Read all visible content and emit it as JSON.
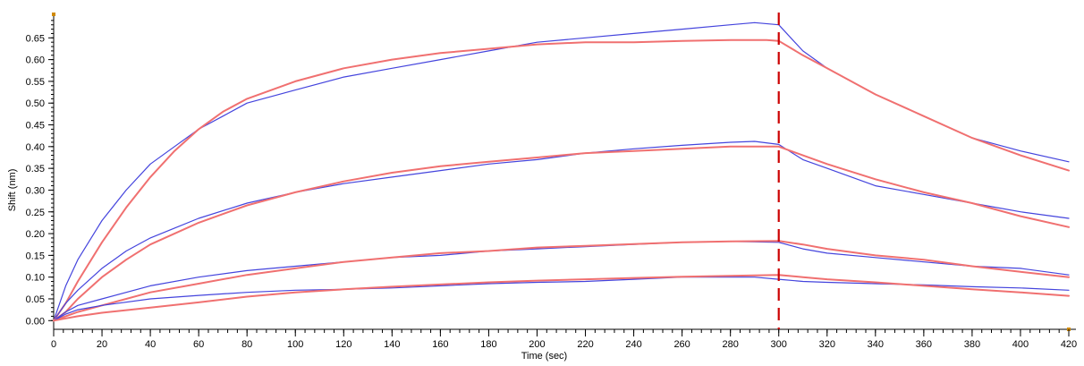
{
  "chart_data": {
    "type": "line",
    "xlabel": "Time (sec)",
    "ylabel": "Shift (nm)",
    "xlim": [
      0,
      420
    ],
    "ylim": [
      -0.02,
      0.7
    ],
    "x_ticks": [
      0,
      20,
      40,
      60,
      80,
      100,
      120,
      140,
      160,
      180,
      200,
      220,
      240,
      260,
      280,
      300,
      320,
      340,
      360,
      380,
      400,
      420
    ],
    "y_ticks": [
      0.0,
      0.05,
      0.1,
      0.15,
      0.2,
      0.25,
      0.3,
      0.35,
      0.4,
      0.45,
      0.5,
      0.55,
      0.6,
      0.65
    ],
    "y_tick_labels": [
      "0.00",
      "0.05",
      "0.10",
      "0.15",
      "0.20",
      "0.25",
      "0.30",
      "0.35",
      "0.40",
      "0.45",
      "0.50",
      "0.55",
      "0.60",
      "0.65"
    ],
    "grid": false,
    "vline": {
      "x": 300,
      "color": "#cc0000",
      "style": "dashed"
    },
    "colors": {
      "measured": "#4444dd",
      "fit": "#f07070"
    },
    "series": [
      {
        "kind": "measured",
        "color": "#4444dd",
        "points": [
          [
            0,
            0.0
          ],
          [
            5,
            0.08
          ],
          [
            10,
            0.14
          ],
          [
            20,
            0.23
          ],
          [
            30,
            0.3
          ],
          [
            40,
            0.36
          ],
          [
            50,
            0.4
          ],
          [
            60,
            0.44
          ],
          [
            70,
            0.47
          ],
          [
            80,
            0.5
          ],
          [
            100,
            0.53
          ],
          [
            120,
            0.56
          ],
          [
            140,
            0.58
          ],
          [
            160,
            0.6
          ],
          [
            180,
            0.62
          ],
          [
            200,
            0.64
          ],
          [
            220,
            0.65
          ],
          [
            240,
            0.66
          ],
          [
            260,
            0.67
          ],
          [
            280,
            0.68
          ],
          [
            290,
            0.685
          ],
          [
            300,
            0.68
          ],
          [
            310,
            0.62
          ],
          [
            320,
            0.58
          ],
          [
            340,
            0.52
          ],
          [
            360,
            0.47
          ],
          [
            380,
            0.42
          ],
          [
            400,
            0.39
          ],
          [
            420,
            0.365
          ]
        ]
      },
      {
        "kind": "fit",
        "color": "#f07070",
        "points": [
          [
            0,
            0.0
          ],
          [
            5,
            0.04
          ],
          [
            10,
            0.09
          ],
          [
            20,
            0.18
          ],
          [
            30,
            0.26
          ],
          [
            40,
            0.33
          ],
          [
            50,
            0.39
          ],
          [
            60,
            0.44
          ],
          [
            70,
            0.48
          ],
          [
            80,
            0.51
          ],
          [
            100,
            0.55
          ],
          [
            120,
            0.58
          ],
          [
            140,
            0.6
          ],
          [
            160,
            0.615
          ],
          [
            180,
            0.625
          ],
          [
            200,
            0.635
          ],
          [
            220,
            0.64
          ],
          [
            240,
            0.64
          ],
          [
            260,
            0.643
          ],
          [
            280,
            0.645
          ],
          [
            295,
            0.645
          ],
          [
            300,
            0.643
          ],
          [
            310,
            0.61
          ],
          [
            320,
            0.58
          ],
          [
            340,
            0.52
          ],
          [
            360,
            0.47
          ],
          [
            380,
            0.42
          ],
          [
            400,
            0.38
          ],
          [
            420,
            0.345
          ]
        ]
      },
      {
        "kind": "measured",
        "color": "#4444dd",
        "points": [
          [
            0,
            0.0
          ],
          [
            5,
            0.04
          ],
          [
            10,
            0.07
          ],
          [
            20,
            0.12
          ],
          [
            30,
            0.16
          ],
          [
            40,
            0.19
          ],
          [
            60,
            0.235
          ],
          [
            80,
            0.27
          ],
          [
            100,
            0.295
          ],
          [
            120,
            0.315
          ],
          [
            140,
            0.33
          ],
          [
            160,
            0.345
          ],
          [
            180,
            0.36
          ],
          [
            200,
            0.37
          ],
          [
            220,
            0.385
          ],
          [
            240,
            0.395
          ],
          [
            260,
            0.403
          ],
          [
            280,
            0.41
          ],
          [
            290,
            0.412
          ],
          [
            300,
            0.405
          ],
          [
            310,
            0.37
          ],
          [
            320,
            0.35
          ],
          [
            340,
            0.31
          ],
          [
            360,
            0.29
          ],
          [
            380,
            0.27
          ],
          [
            400,
            0.25
          ],
          [
            420,
            0.235
          ]
        ]
      },
      {
        "kind": "fit",
        "color": "#f07070",
        "points": [
          [
            0,
            0.0
          ],
          [
            5,
            0.02
          ],
          [
            10,
            0.05
          ],
          [
            20,
            0.1
          ],
          [
            30,
            0.14
          ],
          [
            40,
            0.175
          ],
          [
            60,
            0.225
          ],
          [
            80,
            0.265
          ],
          [
            100,
            0.295
          ],
          [
            120,
            0.32
          ],
          [
            140,
            0.34
          ],
          [
            160,
            0.355
          ],
          [
            180,
            0.365
          ],
          [
            200,
            0.375
          ],
          [
            220,
            0.385
          ],
          [
            240,
            0.39
          ],
          [
            260,
            0.395
          ],
          [
            280,
            0.4
          ],
          [
            300,
            0.4
          ],
          [
            310,
            0.38
          ],
          [
            320,
            0.36
          ],
          [
            340,
            0.325
          ],
          [
            360,
            0.295
          ],
          [
            380,
            0.27
          ],
          [
            400,
            0.24
          ],
          [
            420,
            0.215
          ]
        ]
      },
      {
        "kind": "measured",
        "color": "#4444dd",
        "points": [
          [
            0,
            0.0
          ],
          [
            5,
            0.02
          ],
          [
            10,
            0.035
          ],
          [
            20,
            0.05
          ],
          [
            40,
            0.08
          ],
          [
            60,
            0.1
          ],
          [
            80,
            0.115
          ],
          [
            100,
            0.125
          ],
          [
            120,
            0.135
          ],
          [
            140,
            0.145
          ],
          [
            160,
            0.15
          ],
          [
            180,
            0.16
          ],
          [
            200,
            0.165
          ],
          [
            220,
            0.17
          ],
          [
            240,
            0.175
          ],
          [
            260,
            0.18
          ],
          [
            280,
            0.182
          ],
          [
            300,
            0.18
          ],
          [
            310,
            0.165
          ],
          [
            320,
            0.155
          ],
          [
            340,
            0.145
          ],
          [
            360,
            0.135
          ],
          [
            380,
            0.125
          ],
          [
            400,
            0.12
          ],
          [
            420,
            0.105
          ]
        ]
      },
      {
        "kind": "fit",
        "color": "#f07070",
        "points": [
          [
            0,
            0.0
          ],
          [
            5,
            0.01
          ],
          [
            10,
            0.02
          ],
          [
            20,
            0.035
          ],
          [
            40,
            0.065
          ],
          [
            60,
            0.085
          ],
          [
            80,
            0.105
          ],
          [
            100,
            0.12
          ],
          [
            120,
            0.135
          ],
          [
            140,
            0.145
          ],
          [
            160,
            0.155
          ],
          [
            180,
            0.16
          ],
          [
            200,
            0.168
          ],
          [
            220,
            0.172
          ],
          [
            240,
            0.176
          ],
          [
            260,
            0.18
          ],
          [
            280,
            0.182
          ],
          [
            300,
            0.183
          ],
          [
            310,
            0.175
          ],
          [
            320,
            0.165
          ],
          [
            340,
            0.15
          ],
          [
            360,
            0.14
          ],
          [
            380,
            0.125
          ],
          [
            400,
            0.112
          ],
          [
            420,
            0.1
          ]
        ]
      },
      {
        "kind": "measured",
        "color": "#4444dd",
        "points": [
          [
            0,
            0.0
          ],
          [
            5,
            0.015
          ],
          [
            10,
            0.025
          ],
          [
            20,
            0.035
          ],
          [
            40,
            0.05
          ],
          [
            60,
            0.058
          ],
          [
            80,
            0.065
          ],
          [
            100,
            0.07
          ],
          [
            120,
            0.072
          ],
          [
            140,
            0.075
          ],
          [
            160,
            0.08
          ],
          [
            180,
            0.085
          ],
          [
            200,
            0.088
          ],
          [
            220,
            0.09
          ],
          [
            240,
            0.095
          ],
          [
            260,
            0.1
          ],
          [
            280,
            0.1
          ],
          [
            290,
            0.1
          ],
          [
            300,
            0.095
          ],
          [
            310,
            0.09
          ],
          [
            320,
            0.088
          ],
          [
            340,
            0.085
          ],
          [
            360,
            0.082
          ],
          [
            380,
            0.078
          ],
          [
            400,
            0.075
          ],
          [
            420,
            0.07
          ]
        ]
      },
      {
        "kind": "fit",
        "color": "#f07070",
        "points": [
          [
            0,
            0.0
          ],
          [
            5,
            0.005
          ],
          [
            10,
            0.01
          ],
          [
            20,
            0.018
          ],
          [
            40,
            0.03
          ],
          [
            60,
            0.042
          ],
          [
            80,
            0.055
          ],
          [
            100,
            0.065
          ],
          [
            120,
            0.072
          ],
          [
            140,
            0.078
          ],
          [
            160,
            0.083
          ],
          [
            180,
            0.088
          ],
          [
            200,
            0.092
          ],
          [
            220,
            0.095
          ],
          [
            240,
            0.098
          ],
          [
            260,
            0.101
          ],
          [
            280,
            0.103
          ],
          [
            300,
            0.105
          ],
          [
            310,
            0.1
          ],
          [
            320,
            0.095
          ],
          [
            340,
            0.088
          ],
          [
            360,
            0.08
          ],
          [
            380,
            0.072
          ],
          [
            400,
            0.065
          ],
          [
            420,
            0.057
          ]
        ]
      }
    ]
  }
}
